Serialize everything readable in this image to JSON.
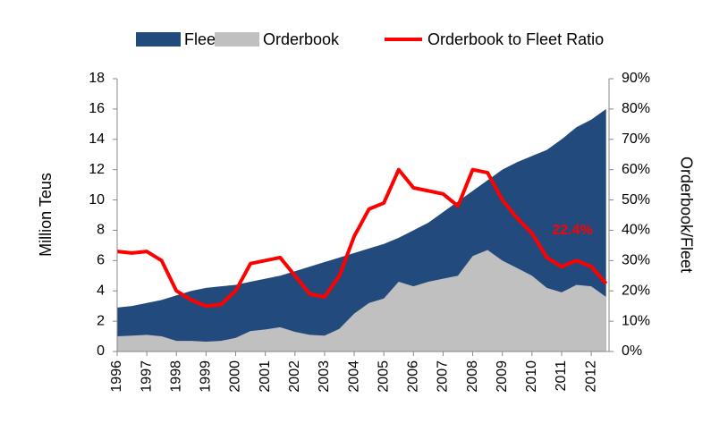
{
  "chart_data": {
    "type": "area-line",
    "annotation": "22.4%",
    "ylabel": "Million Teus",
    "y2label": "Orderbook/Fleet",
    "x": [
      1996,
      1996.5,
      1997,
      1997.5,
      1998,
      1998.5,
      1999,
      1999.5,
      2000,
      2000.5,
      2001,
      2001.5,
      2002,
      2002.5,
      2003,
      2003.5,
      2004,
      2004.5,
      2005,
      2005.5,
      2006,
      2006.5,
      2007,
      2007.5,
      2008,
      2008.5,
      2009,
      2009.5,
      2010,
      2010.5,
      2011,
      2011.5,
      2012,
      2012.5
    ],
    "series": [
      {
        "name": "Fleet",
        "color": "#234a7d",
        "style": "area",
        "values": [
          2.9,
          3.0,
          3.2,
          3.4,
          3.7,
          4.0,
          4.2,
          4.3,
          4.4,
          4.6,
          4.8,
          5.0,
          5.3,
          5.6,
          5.9,
          6.2,
          6.5,
          6.8,
          7.1,
          7.5,
          8.0,
          8.5,
          9.2,
          9.9,
          10.6,
          11.3,
          12.0,
          12.5,
          12.9,
          13.3,
          14.0,
          14.8,
          15.3,
          16.0
        ]
      },
      {
        "name": "Orderbook",
        "color": "#c0c0c0",
        "style": "area",
        "values": [
          1.0,
          1.05,
          1.1,
          1.0,
          0.7,
          0.7,
          0.65,
          0.7,
          0.9,
          1.35,
          1.45,
          1.6,
          1.3,
          1.1,
          1.05,
          1.5,
          2.5,
          3.2,
          3.5,
          4.6,
          4.3,
          4.6,
          4.8,
          5.0,
          6.3,
          6.7,
          6.0,
          5.5,
          5.0,
          4.2,
          3.9,
          4.4,
          4.3,
          3.6
        ]
      },
      {
        "name": "Orderbook to Fleet Ratio",
        "color": "#ff0000",
        "style": "line",
        "axis": "y2",
        "values": [
          33,
          32.5,
          33,
          30,
          20,
          17,
          15,
          15.5,
          20,
          29,
          30,
          31,
          25,
          19,
          18,
          25,
          38,
          47,
          49,
          60,
          54,
          53,
          52,
          48,
          60,
          59,
          50,
          44,
          39,
          31,
          28,
          30,
          28,
          22.4
        ]
      }
    ],
    "xlim": [
      1996,
      2012.6
    ],
    "xticks": [
      1996,
      1997,
      1998,
      1999,
      2000,
      2001,
      2002,
      2003,
      2004,
      2005,
      2006,
      2007,
      2008,
      2009,
      2010,
      2011,
      2012
    ],
    "ylim": [
      0,
      18
    ],
    "yticks": [
      0,
      2,
      4,
      6,
      8,
      10,
      12,
      14,
      16,
      18
    ],
    "y2lim": [
      0,
      90
    ],
    "y2ticks": [
      {
        "value": 0,
        "label": "0%"
      },
      {
        "value": 10,
        "label": "10%"
      },
      {
        "value": 20,
        "label": "20%"
      },
      {
        "value": 30,
        "label": "30%"
      },
      {
        "value": 40,
        "label": "40%"
      },
      {
        "value": 50,
        "label": "50%"
      },
      {
        "value": 60,
        "label": "60%"
      },
      {
        "value": 70,
        "label": "70%"
      },
      {
        "value": 80,
        "label": "80%"
      },
      {
        "value": 90,
        "label": "90%"
      }
    ],
    "grid": false,
    "legend": "top"
  }
}
